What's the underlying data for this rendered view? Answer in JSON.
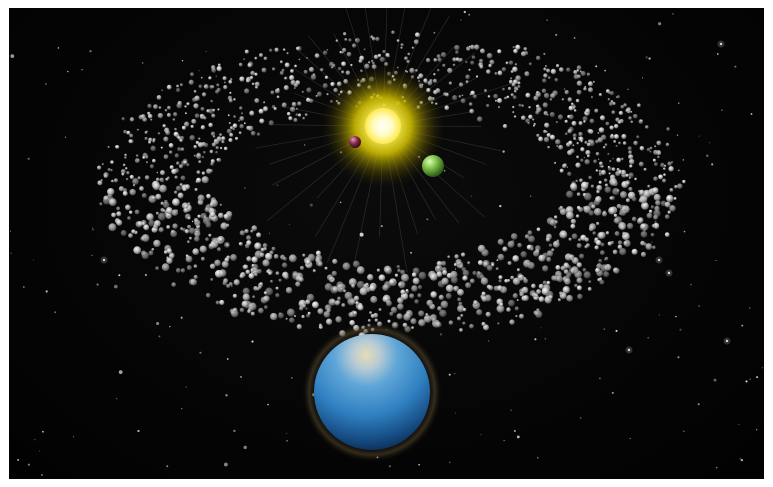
{
  "scene": {
    "background_color": "#050505",
    "star_color": "#d8d8d8",
    "sun_color": "#fff27a",
    "sun_glow_color": "#c9b400",
    "inner_planet_color": "#8a2a4a",
    "green_planet_color": "#7fc24a",
    "blue_planet_color": "#2f7fc0"
  }
}
